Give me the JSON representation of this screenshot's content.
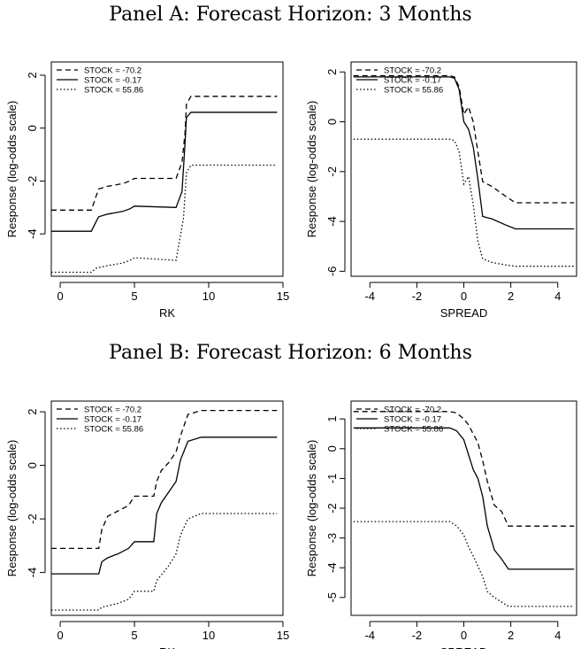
{
  "panels": {
    "a_title": "Panel A: Forecast Horizon: 3 Months",
    "b_title": "Panel B: Forecast Horizon: 6 Months"
  },
  "chart_data": [
    {
      "type": "line",
      "panel": "A",
      "xlabel": "RK",
      "ylabel": "Response (log-odds scale)",
      "xlim": [
        -0.6,
        15.0
      ],
      "ylim": [
        -5.6,
        2.5
      ],
      "xticks": [
        0,
        5,
        10,
        15
      ],
      "yticks": [
        -4,
        -2,
        0,
        2
      ],
      "legend_position": "top-left",
      "series": [
        {
          "name": "STOCK = -70.2",
          "style": "dashed",
          "x": [
            -0.6,
            2.1,
            2.4,
            2.6,
            3.2,
            4.2,
            4.7,
            5.0,
            7.8,
            8.2,
            8.4,
            8.5,
            8.8,
            14.6
          ],
          "y": [
            -3.1,
            -3.1,
            -2.6,
            -2.3,
            -2.2,
            -2.1,
            -2.0,
            -1.9,
            -1.9,
            -1.3,
            -0.2,
            0.9,
            1.2,
            1.2
          ]
        },
        {
          "name": "STOCK = -0.17",
          "style": "solid",
          "x": [
            -0.6,
            2.1,
            2.4,
            2.6,
            3.2,
            4.2,
            4.7,
            5.0,
            7.8,
            8.2,
            8.4,
            8.5,
            8.8,
            14.6
          ],
          "y": [
            -3.9,
            -3.9,
            -3.55,
            -3.35,
            -3.25,
            -3.15,
            -3.05,
            -2.95,
            -3.0,
            -2.4,
            -0.6,
            0.4,
            0.6,
            0.6
          ]
        },
        {
          "name": "STOCK = 55.86",
          "style": "dotted",
          "x": [
            -0.6,
            2.1,
            2.4,
            3.2,
            4.2,
            4.7,
            5.0,
            7.8,
            8.3,
            8.5,
            8.8,
            14.6
          ],
          "y": [
            -5.45,
            -5.45,
            -5.3,
            -5.2,
            -5.1,
            -5.0,
            -4.9,
            -5.0,
            -3.4,
            -1.7,
            -1.4,
            -1.4
          ]
        }
      ]
    },
    {
      "type": "line",
      "panel": "A",
      "xlabel": "SPREAD",
      "ylabel": "Response (log-odds scale)",
      "xlim": [
        -4.8,
        4.8
      ],
      "ylim": [
        -6.2,
        2.4
      ],
      "xticks": [
        -4,
        -2,
        0,
        2,
        4
      ],
      "yticks": [
        -6,
        -4,
        -2,
        0,
        2
      ],
      "legend_position": "top-left",
      "series": [
        {
          "name": "STOCK = -70.2",
          "style": "dashed",
          "x": [
            -4.7,
            -0.6,
            -0.4,
            -0.2,
            0.0,
            0.2,
            0.4,
            0.6,
            0.8,
            1.2,
            1.8,
            2.2,
            4.7
          ],
          "y": [
            1.85,
            1.85,
            1.8,
            1.4,
            0.3,
            0.6,
            0.0,
            -1.2,
            -2.4,
            -2.6,
            -3.0,
            -3.25,
            -3.25
          ]
        },
        {
          "name": "STOCK = -0.17",
          "style": "solid",
          "x": [
            -4.7,
            -0.6,
            -0.4,
            -0.2,
            0.0,
            0.2,
            0.4,
            0.6,
            0.8,
            1.2,
            1.8,
            2.2,
            4.7
          ],
          "y": [
            1.8,
            1.8,
            1.75,
            1.3,
            0.0,
            -0.3,
            -1.0,
            -2.3,
            -3.8,
            -3.9,
            -4.15,
            -4.3,
            -4.3
          ]
        },
        {
          "name": "STOCK = 55.86",
          "style": "dotted",
          "x": [
            -4.7,
            -0.6,
            -0.4,
            -0.2,
            0.0,
            0.2,
            0.4,
            0.6,
            0.8,
            1.2,
            1.8,
            2.2,
            4.7
          ],
          "y": [
            -0.7,
            -0.7,
            -0.75,
            -1.2,
            -2.5,
            -2.2,
            -3.3,
            -4.8,
            -5.5,
            -5.65,
            -5.75,
            -5.8,
            -5.8
          ]
        }
      ]
    },
    {
      "type": "line",
      "panel": "B",
      "xlabel": "RK",
      "ylabel": "Response (log-odds scale)",
      "xlim": [
        -0.6,
        15.0
      ],
      "ylim": [
        -5.6,
        2.4
      ],
      "xticks": [
        0,
        5,
        10,
        15
      ],
      "yticks": [
        -4,
        -2,
        0,
        2
      ],
      "legend_position": "top-left",
      "series": [
        {
          "name": "STOCK = -70.2",
          "style": "dashed",
          "x": [
            -0.6,
            2.6,
            2.8,
            3.2,
            3.9,
            4.6,
            5.0,
            6.3,
            6.5,
            6.8,
            7.3,
            7.8,
            8.1,
            8.6,
            9.5,
            14.6
          ],
          "y": [
            -3.1,
            -3.1,
            -2.4,
            -1.9,
            -1.7,
            -1.5,
            -1.15,
            -1.15,
            -0.6,
            -0.2,
            0.1,
            0.5,
            1.1,
            1.9,
            2.05,
            2.05
          ]
        },
        {
          "name": "STOCK = -0.17",
          "style": "solid",
          "x": [
            -0.6,
            2.6,
            2.8,
            3.2,
            3.9,
            4.6,
            5.0,
            6.3,
            6.5,
            6.8,
            7.3,
            7.8,
            8.1,
            8.6,
            9.5,
            14.6
          ],
          "y": [
            -4.05,
            -4.05,
            -3.6,
            -3.45,
            -3.3,
            -3.1,
            -2.85,
            -2.85,
            -1.8,
            -1.4,
            -1.0,
            -0.6,
            0.2,
            0.9,
            1.05,
            1.05
          ]
        },
        {
          "name": "STOCK = 55.86",
          "style": "dotted",
          "x": [
            -0.6,
            2.6,
            2.8,
            3.9,
            4.6,
            5.0,
            6.3,
            6.5,
            6.8,
            7.3,
            7.8,
            8.1,
            8.6,
            9.5,
            14.6
          ],
          "y": [
            -5.4,
            -5.4,
            -5.3,
            -5.15,
            -5.0,
            -4.7,
            -4.7,
            -4.3,
            -4.1,
            -3.75,
            -3.3,
            -2.6,
            -2.0,
            -1.8,
            -1.8
          ]
        }
      ]
    },
    {
      "type": "line",
      "panel": "B",
      "xlabel": "SPREAD",
      "ylabel": "Response (log-odds scale)",
      "xlim": [
        -4.8,
        4.8
      ],
      "ylim": [
        -5.6,
        1.6
      ],
      "xticks": [
        -4,
        -2,
        0,
        2,
        4
      ],
      "yticks": [
        -5,
        -4,
        -3,
        -2,
        -1,
        0,
        1
      ],
      "legend_position": "top-left",
      "series": [
        {
          "name": "STOCK = -70.2",
          "style": "dashed",
          "x": [
            -4.7,
            -0.6,
            -0.3,
            0.0,
            0.2,
            0.4,
            0.6,
            0.8,
            1.0,
            1.3,
            1.6,
            1.9,
            4.7
          ],
          "y": [
            1.25,
            1.25,
            1.2,
            1.0,
            0.8,
            0.5,
            0.2,
            -0.4,
            -1.1,
            -1.9,
            -2.1,
            -2.6,
            -2.6
          ]
        },
        {
          "name": "STOCK = -0.17",
          "style": "solid",
          "x": [
            -4.7,
            -0.6,
            -0.3,
            0.0,
            0.2,
            0.4,
            0.6,
            0.8,
            1.0,
            1.3,
            1.6,
            1.9,
            4.7
          ],
          "y": [
            0.7,
            0.7,
            0.6,
            0.3,
            -0.2,
            -0.7,
            -1.0,
            -1.6,
            -2.6,
            -3.4,
            -3.7,
            -4.05,
            -4.05
          ]
        },
        {
          "name": "STOCK = 55.86",
          "style": "dotted",
          "x": [
            -4.7,
            -0.6,
            -0.3,
            0.0,
            0.2,
            0.4,
            0.6,
            0.8,
            1.0,
            1.3,
            1.6,
            1.9,
            4.7
          ],
          "y": [
            -2.45,
            -2.45,
            -2.6,
            -2.9,
            -3.3,
            -3.6,
            -3.95,
            -4.3,
            -4.8,
            -5.0,
            -5.15,
            -5.3,
            -5.3
          ]
        }
      ]
    }
  ]
}
